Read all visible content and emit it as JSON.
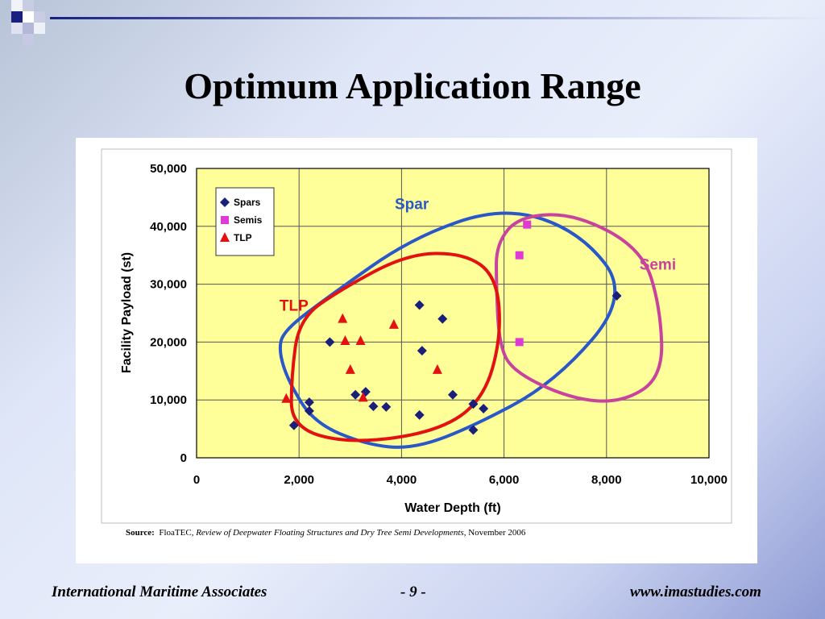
{
  "slide": {
    "title": "Optimum Application Range",
    "footer_left": "International Maritime Associates",
    "footer_center": "- 9 -",
    "footer_right": "www.imastudies.com"
  },
  "source": {
    "label": "Source:",
    "org": "FloaTEC,",
    "publication": "Review of Deepwater Floating Structures and Dry Tree Semi Developments",
    "date": ", November 2006"
  },
  "colors": {
    "plot_bg": "#ffff99",
    "spar": "#1a1f7a",
    "semi": "#e03ad6",
    "tlp": "#e31212",
    "spar_outline": "#2a58c9",
    "semi_outline": "#c8439e",
    "tlp_outline": "#e31212",
    "grid": "#555555"
  },
  "chart_data": {
    "type": "scatter",
    "xlabel": "Water Depth (ft)",
    "ylabel": "Facility Payload (st)",
    "xlim": [
      0,
      10000
    ],
    "ylim": [
      0,
      50000
    ],
    "xticks": [
      "0",
      "2,000",
      "4,000",
      "6,000",
      "8,000",
      "10,000"
    ],
    "yticks": [
      "0",
      "10,000",
      "20,000",
      "30,000",
      "40,000",
      "50,000"
    ],
    "grid": true,
    "legend_position": "top-left",
    "series": [
      {
        "name": "Spars",
        "marker": "diamond",
        "points": [
          [
            1900,
            5600
          ],
          [
            2200,
            8100
          ],
          [
            2200,
            9600
          ],
          [
            2600,
            20000
          ],
          [
            3100,
            10900
          ],
          [
            3300,
            11400
          ],
          [
            3450,
            8900
          ],
          [
            3700,
            8800
          ],
          [
            4350,
            26400
          ],
          [
            4350,
            7400
          ],
          [
            4400,
            18500
          ],
          [
            4800,
            24000
          ],
          [
            5000,
            10900
          ],
          [
            5400,
            4800
          ],
          [
            5400,
            9300
          ],
          [
            5600,
            8500
          ],
          [
            8200,
            28000
          ]
        ]
      },
      {
        "name": "Semis",
        "marker": "square",
        "points": [
          [
            6300,
            35000
          ],
          [
            6300,
            20000
          ],
          [
            6450,
            40300
          ]
        ]
      },
      {
        "name": "TLP",
        "marker": "triangle",
        "points": [
          [
            1750,
            10200
          ],
          [
            2850,
            24000
          ],
          [
            2900,
            20200
          ],
          [
            3000,
            15200
          ],
          [
            3200,
            20200
          ],
          [
            3250,
            10400
          ],
          [
            3850,
            23000
          ],
          [
            4700,
            15200
          ]
        ]
      }
    ],
    "regions": [
      {
        "name": "Spar",
        "label": "Spar"
      },
      {
        "name": "Semi",
        "label": "Semi"
      },
      {
        "name": "TLP",
        "label": "TLP"
      }
    ]
  }
}
